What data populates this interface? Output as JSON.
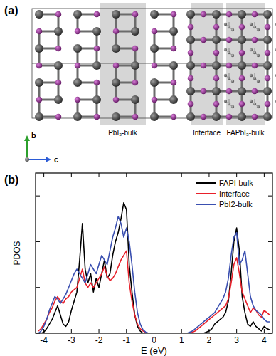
{
  "structure_panel": {
    "label": "(a)",
    "regions": [
      "PbI₂-bulk",
      "Interface",
      "FAPbI₃-bulk"
    ],
    "axes": {
      "vertical": "b",
      "horizontal": "c"
    }
  },
  "chart_data": {
    "type": "line",
    "title": "(b)",
    "x_label": "E (eV)",
    "y_label": "PDOS",
    "x": [
      -4.2,
      -4.1,
      -4.0,
      -3.9,
      -3.8,
      -3.7,
      -3.6,
      -3.5,
      -3.4,
      -3.3,
      -3.2,
      -3.1,
      -3.0,
      -2.9,
      -2.8,
      -2.7,
      -2.6,
      -2.5,
      -2.4,
      -2.3,
      -2.2,
      -2.1,
      -2.0,
      -1.9,
      -1.8,
      -1.7,
      -1.6,
      -1.5,
      -1.4,
      -1.3,
      -1.2,
      -1.1,
      -1.0,
      -0.9,
      -0.8,
      -0.7,
      -0.6,
      -0.5,
      -0.4,
      -0.3,
      -0.2,
      -0.1,
      0.0,
      0.1,
      0.2,
      0.3,
      0.4,
      0.5,
      0.6,
      0.7,
      0.8,
      0.9,
      1.0,
      1.1,
      1.2,
      1.3,
      1.4,
      1.5,
      1.6,
      1.7,
      1.8,
      1.9,
      2.0,
      2.1,
      2.2,
      2.3,
      2.4,
      2.5,
      2.6,
      2.7,
      2.8,
      2.9,
      3.0,
      3.1,
      3.2,
      3.3,
      3.4,
      3.5,
      3.6,
      3.7,
      3.8,
      3.9,
      4.0,
      4.1,
      4.2
    ],
    "series": [
      {
        "name": "FAPI-bulk",
        "color": "#000000",
        "values": [
          0,
          0,
          0.05,
          0.2,
          0.4,
          0.6,
          0.9,
          1.2,
          0.8,
          0.4,
          0.3,
          0.5,
          1.0,
          1.4,
          1.8,
          3.2,
          4.8,
          2.8,
          2.2,
          2.6,
          1.8,
          2.4,
          2.0,
          2.6,
          3.2,
          2.4,
          2.6,
          3.4,
          4.0,
          4.4,
          5.0,
          5.7,
          5.4,
          3.0,
          1.8,
          0.8,
          0.3,
          0.1,
          0,
          0,
          0,
          0,
          0,
          0,
          0,
          0,
          0,
          0,
          0,
          0,
          0,
          0,
          0,
          0,
          0,
          0,
          0,
          0,
          0,
          0,
          0,
          0.05,
          0.1,
          0.2,
          0.4,
          0.5,
          0.6,
          0.7,
          0.9,
          1.4,
          2.6,
          4.0,
          4.6,
          3.6,
          1.6,
          0.9,
          0.4,
          0.3,
          0.5,
          0.3,
          0.2,
          0.1,
          0.3,
          0.2,
          0.15
        ]
      },
      {
        "name": "Interface",
        "color": "#e8202a",
        "values": [
          0.1,
          0.2,
          0.4,
          0.6,
          0.9,
          1.1,
          1.4,
          1.6,
          1.4,
          1.3,
          1.5,
          1.6,
          1.8,
          1.9,
          2.0,
          2.4,
          2.8,
          2.2,
          2.0,
          2.2,
          2.0,
          2.2,
          2.4,
          2.6,
          2.9,
          2.5,
          2.3,
          2.4,
          2.6,
          2.9,
          3.2,
          3.4,
          3.6,
          2.2,
          1.4,
          0.8,
          0.4,
          0.2,
          0.1,
          0.03,
          0,
          0,
          0,
          0,
          0,
          0,
          0,
          0,
          0,
          0,
          0,
          0,
          0,
          0,
          0,
          0,
          0.05,
          0.1,
          0.2,
          0.3,
          0.4,
          0.5,
          0.6,
          0.7,
          0.8,
          0.9,
          1.0,
          1.1,
          1.2,
          1.5,
          2.2,
          3.0,
          3.3,
          2.6,
          1.8,
          1.5,
          1.2,
          0.9,
          1.1,
          1.0,
          0.8,
          0.7,
          1.0,
          0.9,
          0.8
        ]
      },
      {
        "name": "PbI2-bulk",
        "color": "#3a4fb0",
        "values": [
          0,
          0.1,
          0.3,
          0.6,
          1.0,
          1.3,
          1.6,
          1.5,
          1.3,
          1.5,
          1.7,
          2.0,
          2.3,
          2.6,
          2.8,
          2.6,
          2.4,
          2.2,
          2.6,
          3.0,
          2.8,
          2.6,
          3.0,
          3.4,
          3.2,
          3.0,
          3.6,
          4.2,
          4.6,
          5.1,
          4.8,
          4.2,
          4.6,
          4.0,
          3.0,
          1.8,
          0.9,
          0.4,
          0.15,
          0.05,
          0,
          0,
          0,
          0,
          0,
          0,
          0,
          0,
          0,
          0,
          0,
          0,
          0,
          0,
          0,
          0.05,
          0.1,
          0.2,
          0.3,
          0.4,
          0.5,
          0.6,
          0.7,
          0.8,
          0.9,
          1.1,
          1.3,
          1.5,
          1.8,
          2.4,
          3.4,
          4.2,
          4.4,
          3.0,
          3.2,
          3.6,
          2.6,
          1.6,
          1.2,
          1.0,
          0.9,
          0.8,
          0.6,
          0.5,
          0.5
        ]
      }
    ],
    "xlim": [
      -4.3,
      4.3
    ],
    "xticks": [
      -4,
      -3,
      -2,
      -1,
      0,
      1,
      2,
      3,
      4
    ],
    "ylim": [
      0,
      7
    ],
    "yticks": [
      0,
      2,
      4,
      6
    ],
    "grid": false,
    "legend": "upper right",
    "tick_labels": "x"
  }
}
